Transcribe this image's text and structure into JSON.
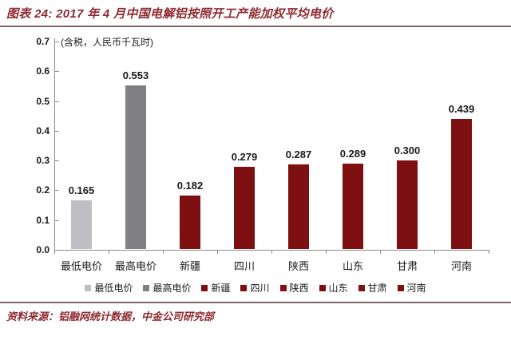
{
  "figure": {
    "title": "图表 24: 2017 年 4 月中国电解铝按照开工产能加权平均电价",
    "source": "资料来源：铝融网统计数据，中金公司研究部"
  },
  "colors": {
    "accent_maroon_text": "#8E2B31",
    "rule_line": "#806465",
    "axis_line": "#8c8c8c",
    "bar_light_gray": "#BFBFC3",
    "bar_gray": "#808084",
    "bar_dark_red": "#7E1012",
    "label_text": "#1a1a1a"
  },
  "chart_data": {
    "type": "bar",
    "title": "2017 年 4 月中国电解铝按照开工产能加权平均电价",
    "unit_note": "(含税，人民币千瓦时)",
    "categories": [
      "最低电价",
      "最高电价",
      "新疆",
      "四川",
      "陕西",
      "山东",
      "甘肃",
      "河南"
    ],
    "values": [
      0.165,
      0.553,
      0.182,
      0.279,
      0.287,
      0.289,
      0.3,
      0.439
    ],
    "value_labels": [
      "0.165",
      "0.553",
      "0.182",
      "0.279",
      "0.287",
      "0.289",
      "0.300",
      "0.439"
    ],
    "bar_colors": [
      "#BFBFC3",
      "#808084",
      "#7E1012",
      "#7E1012",
      "#7E1012",
      "#7E1012",
      "#7E1012",
      "#7E1012"
    ],
    "xlabel": "",
    "ylabel": "",
    "ylim": [
      0,
      0.7
    ],
    "ytick_step": 0.1,
    "ytick_labels": [
      "0.0",
      "0.1",
      "0.2",
      "0.3",
      "0.4",
      "0.5",
      "0.6",
      "0.7"
    ],
    "grid": false,
    "legend": {
      "position": "bottom",
      "entries": [
        {
          "label": "最低电价",
          "color": "#BFBFC3"
        },
        {
          "label": "最高电价",
          "color": "#808084"
        },
        {
          "label": "新疆",
          "color": "#7E1012"
        },
        {
          "label": "四川",
          "color": "#7E1012"
        },
        {
          "label": "陕西",
          "color": "#7E1012"
        },
        {
          "label": "山东",
          "color": "#7E1012"
        },
        {
          "label": "甘肃",
          "color": "#7E1012"
        },
        {
          "label": "河南",
          "color": "#7E1012"
        }
      ]
    }
  }
}
